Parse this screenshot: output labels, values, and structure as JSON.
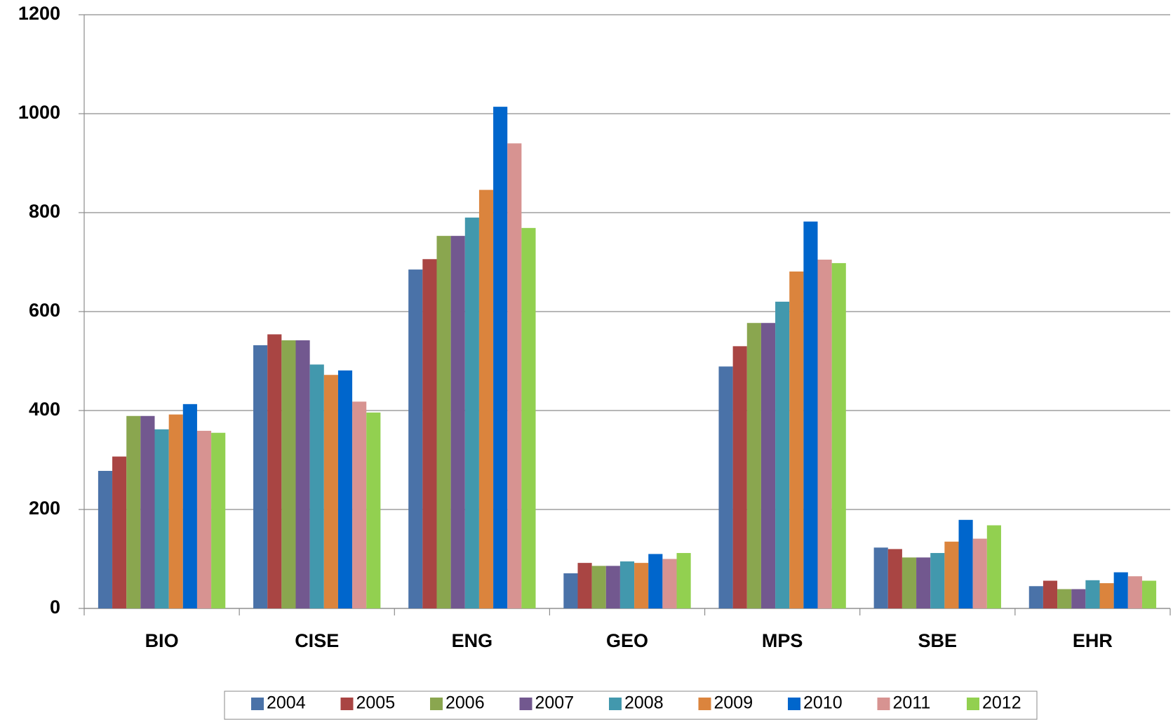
{
  "chart_data": {
    "type": "bar",
    "categories": [
      "BIO",
      "CISE",
      "ENG",
      "GEO",
      "MPS",
      "SBE",
      "EHR"
    ],
    "ylim": [
      0,
      1200
    ],
    "yticks": [
      0,
      200,
      400,
      600,
      800,
      1000,
      1200
    ],
    "grid": true,
    "legend": "bottom",
    "series": [
      {
        "name": "2004",
        "color": "#4a72a8",
        "values": [
          278,
          532,
          685,
          71,
          489,
          123,
          45
        ]
      },
      {
        "name": "2005",
        "color": "#a94543",
        "values": [
          307,
          554,
          706,
          92,
          530,
          120,
          56
        ]
      },
      {
        "name": "2006",
        "color": "#8aa64f",
        "values": [
          389,
          542,
          753,
          86,
          577,
          103,
          39
        ]
      },
      {
        "name": "2007",
        "color": "#72588f",
        "values": [
          389,
          542,
          753,
          86,
          577,
          103,
          39
        ]
      },
      {
        "name": "2008",
        "color": "#4298ad",
        "values": [
          362,
          493,
          790,
          95,
          620,
          112,
          57
        ]
      },
      {
        "name": "2009",
        "color": "#db843d",
        "values": [
          392,
          472,
          846,
          92,
          681,
          135,
          51
        ]
      },
      {
        "name": "2010",
        "color": "#0066cc",
        "values": [
          413,
          481,
          1014,
          110,
          782,
          179,
          73
        ]
      },
      {
        "name": "2011",
        "color": "#d79391",
        "values": [
          359,
          418,
          940,
          100,
          705,
          141,
          65
        ]
      },
      {
        "name": "2012",
        "color": "#92d050",
        "values": [
          355,
          396,
          769,
          112,
          698,
          168,
          56
        ]
      }
    ]
  }
}
